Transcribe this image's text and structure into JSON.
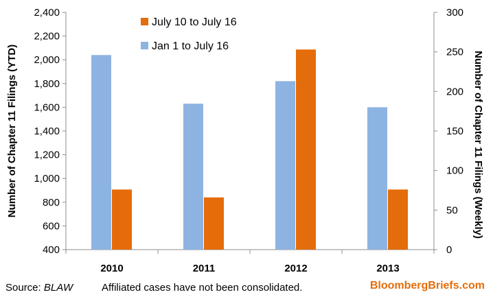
{
  "chart_data": {
    "type": "bar",
    "categories": [
      "2010",
      "2011",
      "2012",
      "2013"
    ],
    "series": [
      {
        "name": "Jan 1 to July 16",
        "axis": "left",
        "color": "#8db3e2",
        "values": [
          2040,
          1630,
          1820,
          1600
        ]
      },
      {
        "name": "July 10 to July 16",
        "axis": "right",
        "color": "#e46c0a",
        "values": [
          76,
          66,
          253,
          76
        ]
      }
    ],
    "y_left": {
      "label": "Number of Chapter 11 Filings  (YTD)",
      "min": 400,
      "max": 2400,
      "ticks": [
        "400",
        "600",
        "800",
        "1,000",
        "1,200",
        "1,400",
        "1,600",
        "1,800",
        "2,000",
        "2,200",
        "2,400"
      ]
    },
    "y_right": {
      "label": "Number of Chapter 11 Filings (Weekly)",
      "min": 0,
      "max": 300,
      "ticks": [
        "0",
        "50",
        "100",
        "150",
        "200",
        "250",
        "300"
      ]
    },
    "grid": false,
    "legend": "top-center"
  },
  "footer": {
    "source_label": "Source: ",
    "source_value": "BLAW",
    "note": "Affiliated cases have not been consolidated.",
    "brand": "BloombergBriefs.com"
  }
}
